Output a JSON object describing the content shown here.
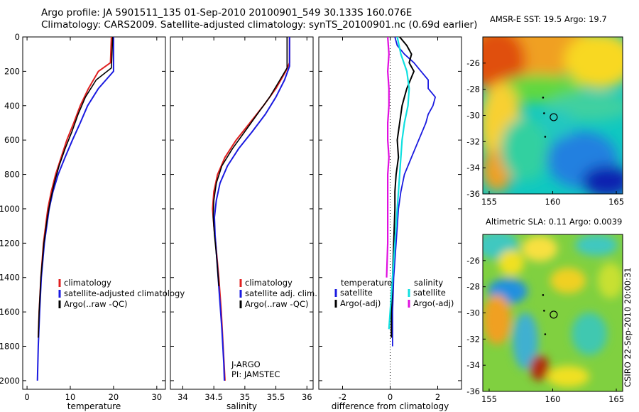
{
  "header": {
    "line1": "Argo profile: JA 5901511_135 01-Sep-2010 20100901_549 30.133S 160.076E",
    "line2": "Climatology: CARS2009. Satellite-adjusted climatology: synTS_20100901.nc (0.69d earlier)"
  },
  "footer": "CSIRO 22-Sep-2010 20:00:31",
  "colors": {
    "climatology": "#e02020",
    "satellite": "#1a1ae0",
    "argo": "#000000",
    "sal_sat": "#10e0e0",
    "sal_argo": "#e010e0"
  },
  "chart_data": [
    {
      "type": "line",
      "xlabel": "temperature",
      "ylabel": "",
      "xlim": [
        -1,
        32
      ],
      "ylim": [
        2050,
        0
      ],
      "xticks": [
        0,
        10,
        20,
        30
      ],
      "yticks": [
        0,
        200,
        400,
        600,
        800,
        1000,
        1200,
        1400,
        1600,
        1800,
        2000
      ],
      "legend": {
        "position": "lower-right",
        "entries": [
          "climatology",
          "satellite-adjusted climatology",
          "Argo(..raw -QC)"
        ]
      },
      "series": [
        {
          "name": "climatology",
          "depth": [
            0,
            150,
            200,
            300,
            400,
            500,
            600,
            700,
            800,
            900,
            1000,
            1200,
            1400,
            1600,
            1750
          ],
          "values": [
            19.5,
            19.3,
            16.5,
            14.2,
            12.3,
            10.8,
            9.2,
            7.9,
            6.6,
            5.6,
            4.8,
            3.8,
            3.2,
            2.8,
            2.6
          ]
        },
        {
          "name": "satellite-adjusted climatology",
          "depth": [
            0,
            200,
            300,
            400,
            500,
            600,
            700,
            800,
            900,
            1000,
            1200,
            1400,
            1600,
            1800,
            2000
          ],
          "values": [
            20.0,
            20.0,
            16.5,
            14.0,
            12.3,
            10.5,
            8.8,
            7.2,
            6.0,
            5.1,
            4.0,
            3.3,
            2.9,
            2.6,
            2.4
          ]
        },
        {
          "name": "Argo(..raw -QC)",
          "depth": [
            0,
            180,
            250,
            350,
            450,
            550,
            650,
            750,
            850,
            950,
            1050,
            1200,
            1400,
            1600,
            1750
          ],
          "values": [
            19.8,
            19.5,
            16.0,
            13.5,
            11.8,
            10.4,
            8.8,
            7.4,
            6.3,
            5.4,
            4.7,
            3.9,
            3.2,
            2.8,
            2.6
          ]
        }
      ]
    },
    {
      "type": "line",
      "xlabel": "salinity",
      "ylabel": "",
      "xlim": [
        33.8,
        36.1
      ],
      "ylim": [
        2050,
        0
      ],
      "xticks": [
        34,
        34.5,
        35,
        35.5,
        36
      ],
      "legend": {
        "position": "lower-right",
        "entries": [
          "climatology",
          "satellite adj. clim.",
          "Argo(..raw -QC)"
        ]
      },
      "annotation": {
        "line1": "J-ARGO",
        "line2": "PI: JAMSTEC"
      },
      "series": [
        {
          "name": "climatology",
          "depth": [
            0,
            150,
            200,
            300,
            400,
            500,
            600,
            700,
            800,
            900,
            1000,
            1100,
            1200,
            1400,
            1600,
            1800,
            2000
          ],
          "values": [
            35.72,
            35.72,
            35.66,
            35.5,
            35.3,
            35.08,
            34.86,
            34.68,
            34.56,
            34.5,
            34.48,
            34.5,
            34.53,
            34.58,
            34.62,
            34.65,
            34.68
          ]
        },
        {
          "name": "satellite adj. clim.",
          "depth": [
            0,
            170,
            250,
            350,
            450,
            550,
            650,
            750,
            850,
            950,
            1050,
            1150,
            1300,
            1500,
            1700,
            1900,
            2000
          ],
          "values": [
            35.72,
            35.72,
            35.64,
            35.5,
            35.33,
            35.12,
            34.9,
            34.72,
            34.6,
            34.54,
            34.51,
            34.52,
            34.55,
            34.59,
            34.63,
            34.66,
            34.67
          ]
        },
        {
          "name": "Argo(..raw -QC)",
          "depth": [
            0,
            180,
            260,
            350,
            450,
            550,
            650,
            750,
            850,
            950,
            1050,
            1150,
            1300,
            1450
          ],
          "values": [
            35.68,
            35.68,
            35.55,
            35.4,
            35.2,
            35.0,
            34.8,
            34.63,
            34.54,
            34.5,
            34.49,
            34.51,
            34.55,
            34.58
          ]
        }
      ]
    },
    {
      "type": "line",
      "xlabel": "difference from climatology",
      "ylabel": "",
      "xlim": [
        -3,
        3
      ],
      "ylim": [
        2050,
        0
      ],
      "xticks": [
        -2,
        0,
        2
      ],
      "legend": {
        "position": "lower-center",
        "temperature_header": "temperature",
        "salinity_header": "salinity",
        "entries": [
          "satellite",
          "Argo(-adj)",
          "satellite",
          "Argo(-adj)"
        ]
      },
      "series": [
        {
          "name": "temperature satellite",
          "depth": [
            0,
            50,
            100,
            150,
            200,
            250,
            300,
            350,
            400,
            450,
            500,
            600,
            700,
            800,
            900,
            1000,
            1200,
            1400,
            1600,
            1800
          ],
          "values": [
            0.2,
            0.3,
            0.6,
            1.0,
            1.3,
            1.6,
            1.6,
            1.9,
            1.8,
            1.6,
            1.5,
            1.2,
            0.9,
            0.6,
            0.45,
            0.35,
            0.25,
            0.15,
            0.1,
            0.1
          ]
        },
        {
          "name": "temperature Argo(-adj)",
          "depth": [
            0,
            50,
            100,
            150,
            200,
            250,
            300,
            350,
            400,
            450,
            500,
            600,
            700,
            800,
            900,
            1000,
            1200,
            1400,
            1600,
            1750
          ],
          "values": [
            0.4,
            0.7,
            0.9,
            0.8,
            1.0,
            0.85,
            0.7,
            0.6,
            0.5,
            0.45,
            0.4,
            0.3,
            0.35,
            0.25,
            0.2,
            0.2,
            0.15,
            0.1,
            0.05,
            0.05
          ]
        },
        {
          "name": "salinity satellite",
          "depth": [
            0,
            100,
            200,
            300,
            400,
            500,
            600,
            800,
            1000,
            1200,
            1400,
            1600,
            1700
          ],
          "values": [
            0.3,
            0.45,
            0.7,
            0.8,
            0.75,
            0.6,
            0.5,
            0.4,
            0.3,
            0.2,
            0.1,
            0.0,
            -0.05
          ]
        },
        {
          "name": "salinity Argo(-adj)",
          "depth": [
            0,
            100,
            200,
            300,
            400,
            500,
            600,
            700,
            800,
            900,
            1000,
            1200,
            1400
          ],
          "values": [
            -0.1,
            -0.05,
            -0.1,
            -0.05,
            -0.05,
            -0.1,
            -0.1,
            -0.05,
            -0.1,
            -0.1,
            -0.1,
            -0.1,
            -0.15
          ]
        }
      ]
    },
    {
      "type": "heatmap",
      "title": "AMSR-E SST: 19.5 Argo: 19.7",
      "xlim": [
        154.5,
        165.5
      ],
      "ylim": [
        -36,
        -24
      ],
      "xticks": [
        155,
        160,
        165
      ],
      "yticks": [
        -26,
        -28,
        -30,
        -32,
        -34,
        -36
      ],
      "marker": {
        "x": 160.076,
        "y": -30.133
      }
    },
    {
      "type": "heatmap",
      "title": "Altimetric SLA: 0.11 Argo: 0.0039",
      "xlim": [
        154.5,
        165.5
      ],
      "ylim": [
        -36,
        -24
      ],
      "xticks": [
        155,
        160,
        165
      ],
      "yticks": [
        -26,
        -28,
        -30,
        -32,
        -34,
        -36
      ],
      "marker": {
        "x": 160.076,
        "y": -30.133
      }
    }
  ]
}
